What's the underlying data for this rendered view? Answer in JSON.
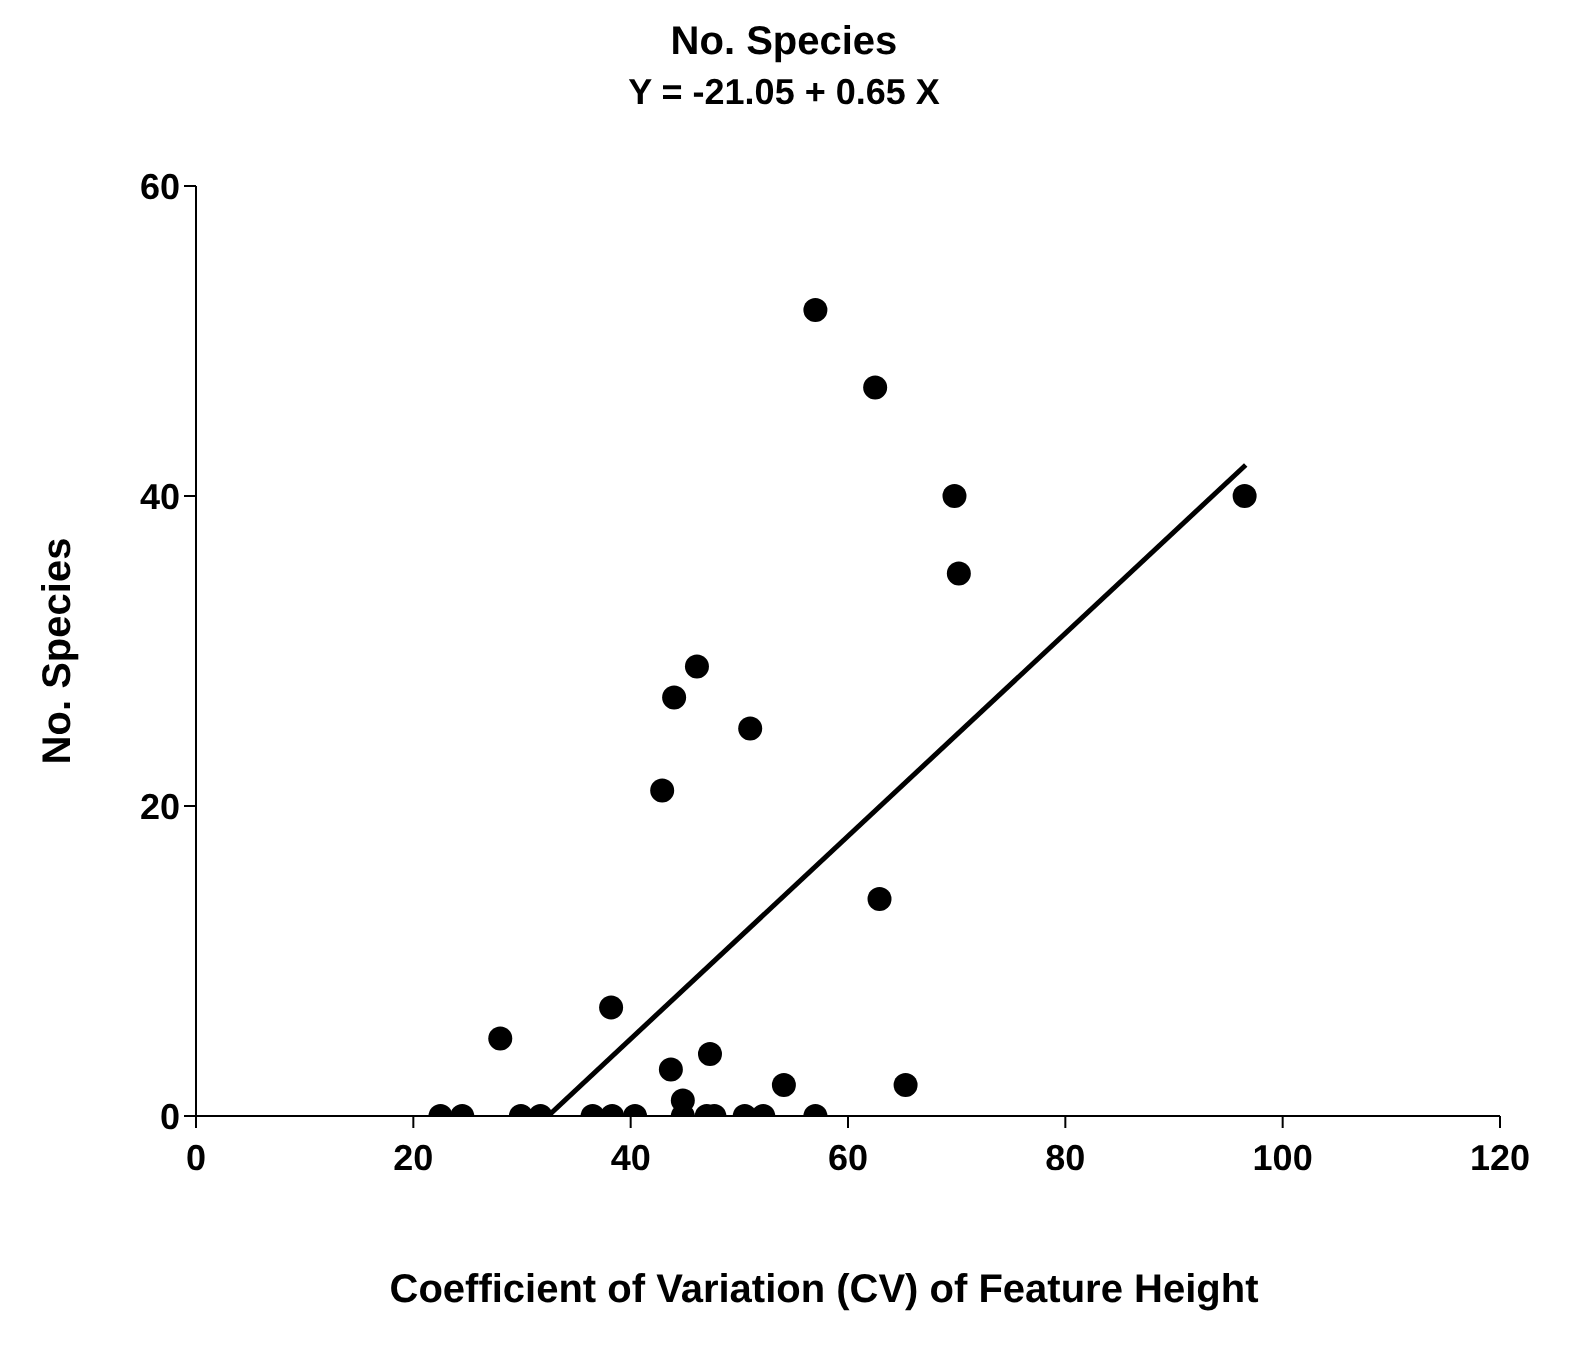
{
  "chart_data": {
    "type": "scatter",
    "title": "No. Species",
    "subtitle": "Y = -21.05 + 0.65 X",
    "xlabel": "Coefficient of Variation (CV) of Feature Height",
    "ylabel": "No. Species",
    "series": [
      {
        "type": "scatter",
        "color": "#000000",
        "marker": "circle",
        "x": [
          22.5,
          24.5,
          29.9,
          31.7,
          36.5,
          38.3,
          40.4,
          44.8,
          47.0,
          47.7,
          50.5,
          52.2,
          57.0,
          44.8,
          43.7,
          47.3,
          54.1,
          65.3,
          28.0,
          38.2,
          62.9,
          42.9,
          44.0,
          46.1,
          51.0,
          57.0,
          62.5,
          69.8,
          70.2,
          96.5
        ],
        "values": [
          0,
          0,
          0,
          0,
          0,
          0,
          0,
          0,
          0,
          0,
          0,
          0,
          0,
          1,
          3,
          4,
          2,
          2,
          5,
          7,
          14,
          21,
          27,
          29,
          25,
          52,
          47,
          40,
          35,
          40
        ]
      },
      {
        "type": "line",
        "color": "#000000",
        "marker": "none",
        "x": [
          32.4,
          96.6
        ],
        "values": [
          0,
          42
        ]
      }
    ],
    "xlim": [
      0,
      120
    ],
    "xticks": [
      0,
      20,
      40,
      60,
      80,
      100,
      120
    ],
    "ylim": [
      0,
      60
    ],
    "yticks": [
      0,
      20,
      40,
      60
    ],
    "grid": false,
    "legend": false
  }
}
